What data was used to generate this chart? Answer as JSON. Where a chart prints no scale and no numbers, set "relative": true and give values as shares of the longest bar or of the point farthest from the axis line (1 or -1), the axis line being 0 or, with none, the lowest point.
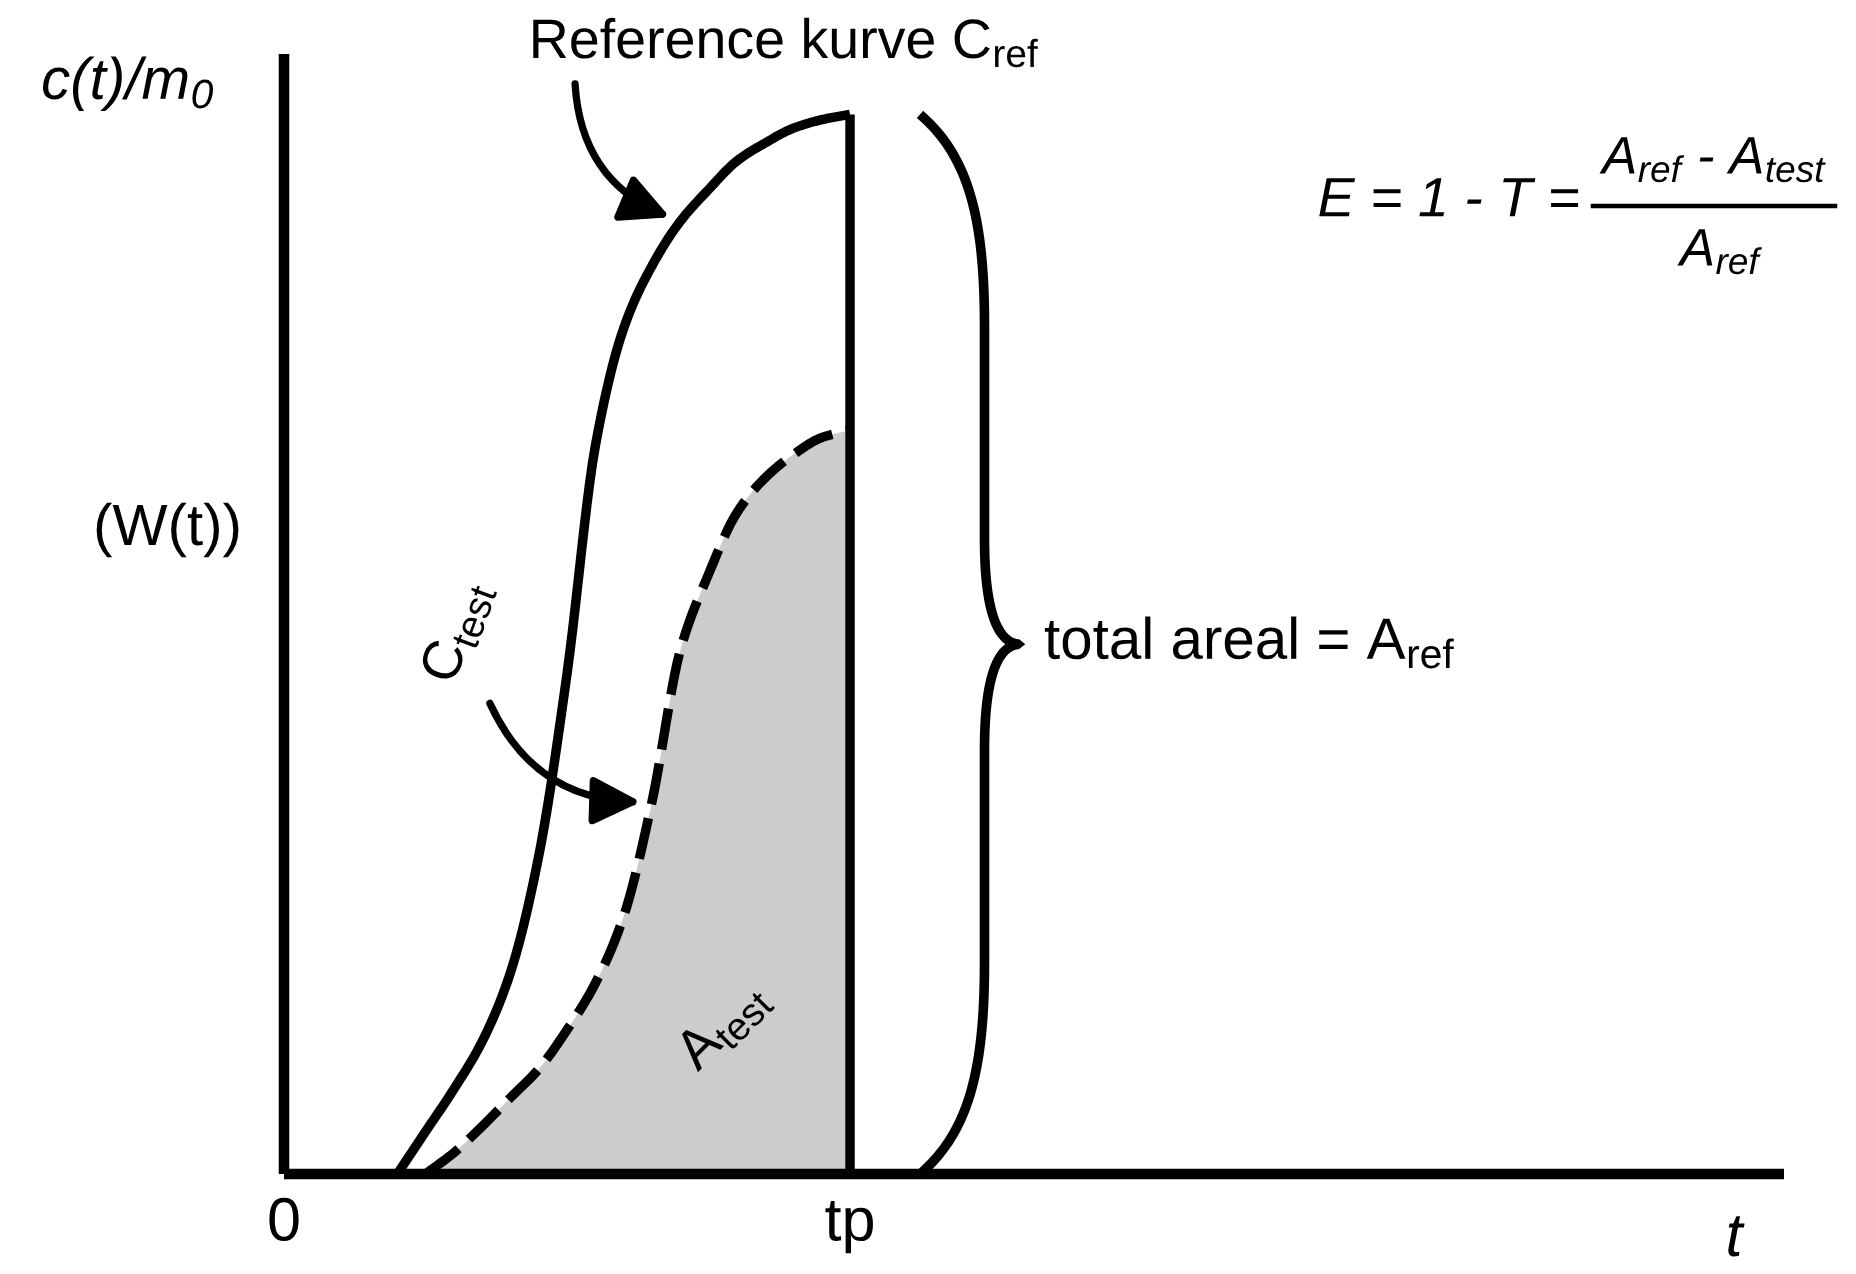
{
  "chart_data": {
    "type": "line",
    "relative": true,
    "tick_labels": "x",
    "categories": [
      "0",
      null,
      null,
      null,
      null,
      null,
      null,
      null,
      null,
      null,
      null,
      null,
      null,
      null,
      null,
      null,
      null,
      null,
      null,
      null,
      "tp",
      null,
      null,
      null,
      null,
      null,
      null,
      null,
      null,
      null,
      null,
      null,
      null,
      null,
      null,
      null,
      null,
      null,
      null,
      null,
      null,
      null,
      null,
      null,
      null,
      null,
      null,
      null,
      null,
      null,
      null,
      null,
      null,
      null
    ],
    "xlabel": "t",
    "ylabel": "c(t)/m$_{0}$",
    "series": [
      {
        "type": "area",
        "color": "#cccccc",
        "line_style": "dashed",
        "values": [
          null,
          null,
          null,
          null,
          null,
          0,
          0.02,
          0.045,
          0.072,
          0.099,
          0.136,
          0.18,
          0.243,
          0.351,
          0.494,
          0.566,
          0.624,
          0.657,
          0.679,
          0.695,
          0.702,
          null,
          null,
          null,
          null,
          null,
          null,
          null,
          null,
          null,
          null,
          null,
          null,
          null,
          null,
          null,
          null,
          null,
          null,
          null,
          null,
          null,
          null,
          null,
          null,
          null,
          null,
          null,
          null,
          null,
          null,
          null,
          null,
          null
        ]
      },
      {
        "color": "#000000",
        "line_style": "solid",
        "values": [
          null,
          null,
          null,
          null,
          0,
          0.04,
          0.08,
          0.125,
          0.19,
          0.3,
          0.472,
          0.687,
          0.798,
          0.857,
          0.899,
          0.929,
          0.956,
          0.973,
          0.987,
          0.995,
          1.0,
          null,
          null,
          null,
          null,
          null,
          null,
          null,
          null,
          null,
          null,
          null,
          null,
          null,
          null,
          null,
          null,
          null,
          null,
          null,
          null,
          null,
          null,
          null,
          null,
          null,
          null,
          null,
          null,
          null,
          null,
          null,
          null,
          null
        ]
      }
    ],
    "ref_lines": [
      {
        "axis": "x",
        "value": "tp",
        "color": "#000000"
      }
    ],
    "annotations": [
      "Reference kurve C$_{ref}$",
      "C$_{test}$",
      "A$_{test}$",
      "total areal = A$_{ref}$",
      "(W(t))",
      "E = 1 - T =",
      "A$_{ref}$ - A$_{test}$",
      "A$_{ref}$"
    ]
  }
}
